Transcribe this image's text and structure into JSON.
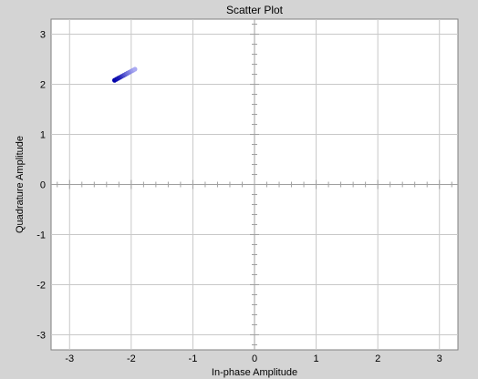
{
  "chart_data": {
    "type": "scatter",
    "title": "Scatter Plot",
    "xlabel": "In-phase Amplitude",
    "ylabel": "Quadrature Amplitude",
    "xlim": [
      -3.3,
      3.3
    ],
    "ylim": [
      -3.3,
      3.3
    ],
    "grid": true,
    "x_ticks": [
      -3,
      -2,
      -1,
      0,
      1,
      2,
      3
    ],
    "y_ticks": [
      -3,
      -2,
      -1,
      0,
      1,
      2,
      3
    ],
    "x_tick_labels": [
      "-3",
      "-2",
      "-1",
      "0",
      "1",
      "2",
      "3"
    ],
    "y_tick_labels": [
      "-3",
      "-2",
      "-1",
      "0",
      "1",
      "2",
      "3"
    ],
    "colors": {
      "background": "#d4d4d4",
      "plot_area": "#ffffff",
      "grid": "#c8c8c8",
      "axis_cross": "#a0a0a0",
      "points_dark": "#0000aa",
      "points_light": "#c8c8ff"
    },
    "series": [
      {
        "x": [
          -2.27,
          -2.24,
          -2.21,
          -2.18,
          -2.15,
          -2.12,
          -2.09,
          -2.06,
          -2.03,
          -2.0,
          -1.97,
          -1.94
        ],
        "y": [
          2.08,
          2.1,
          2.12,
          2.14,
          2.16,
          2.18,
          2.2,
          2.22,
          2.24,
          2.26,
          2.28,
          2.3
        ],
        "intensity": [
          1.0,
          0.95,
          0.9,
          0.85,
          0.75,
          0.65,
          0.55,
          0.45,
          0.38,
          0.3,
          0.22,
          0.15
        ]
      }
    ]
  }
}
